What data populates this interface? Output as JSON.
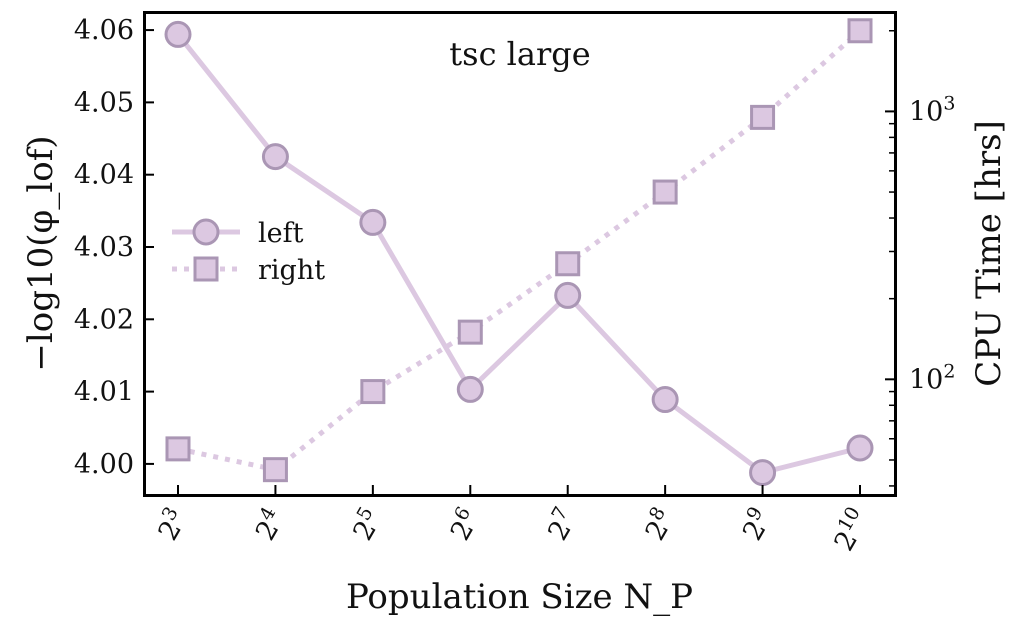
{
  "chart_data": {
    "type": "line",
    "title": "tsc large",
    "xlabel": "Population Size N_P",
    "ylabel_left": "−log10(φ_lof)",
    "ylabel_right": "CPU Time [hrs]",
    "x_base": "2",
    "x_exponents": [
      "3",
      "4",
      "5",
      "6",
      "7",
      "8",
      "9",
      "10"
    ],
    "y_left_ticks": [
      "4.00",
      "4.01",
      "4.02",
      "4.03",
      "4.04",
      "4.05",
      "4.06"
    ],
    "y_left_lim": [
      3.9957,
      4.0625
    ],
    "y_right_scale": "log",
    "y_right_lim": [
      37,
      2350
    ],
    "y_right_ticks": [
      {
        "value": 100,
        "base": "10",
        "exp": "2"
      },
      {
        "value": 1000,
        "base": "10",
        "exp": "3"
      }
    ],
    "legend_placement": "center-left",
    "grid": false,
    "series": [
      {
        "name": "left",
        "axis": "left",
        "marker": "circle",
        "line": "solid",
        "color": "#dcc8e1",
        "edge_color": "#aa96b4",
        "values": [
          4.0594,
          4.0425,
          4.0334,
          4.0103,
          4.0233,
          4.0089,
          3.9988,
          4.0022
        ]
      },
      {
        "name": "right",
        "axis": "right",
        "marker": "square",
        "line": "dotted",
        "color": "#dcc8e1",
        "edge_color": "#aa96b4",
        "values": [
          55,
          46,
          90,
          150,
          270,
          500,
          950,
          2000
        ]
      }
    ]
  }
}
